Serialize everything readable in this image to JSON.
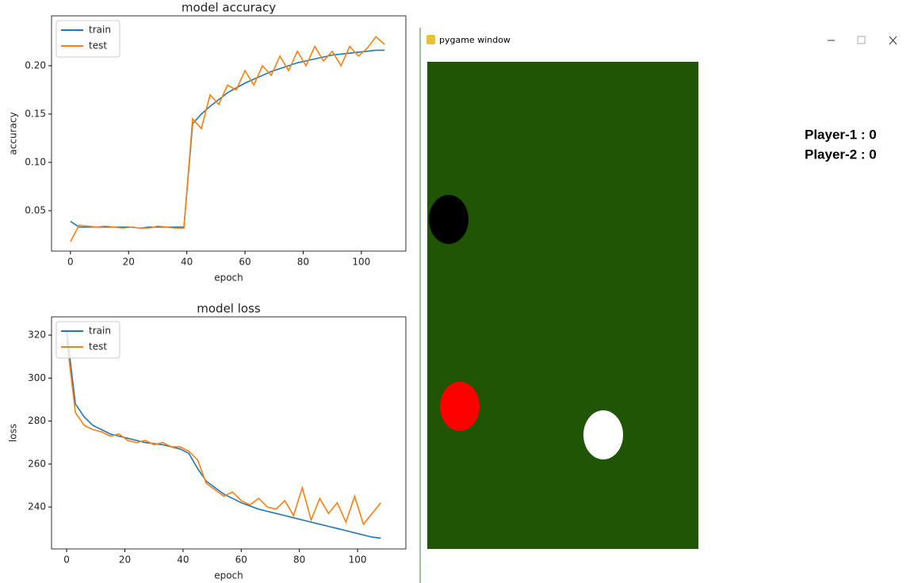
{
  "chart_data": [
    {
      "type": "line",
      "title": "model accuracy",
      "xlabel": "epoch",
      "ylabel": "accuracy",
      "x": [
        0,
        3,
        6,
        9,
        12,
        15,
        18,
        21,
        24,
        27,
        30,
        33,
        36,
        39,
        42,
        45,
        48,
        51,
        54,
        57,
        60,
        63,
        66,
        69,
        72,
        75,
        78,
        81,
        84,
        87,
        90,
        93,
        96,
        99,
        102,
        105,
        108
      ],
      "series": [
        {
          "name": "train",
          "color": "#1f77b4",
          "values": [
            0.039,
            0.033,
            0.033,
            0.033,
            0.033,
            0.033,
            0.033,
            0.033,
            0.032,
            0.033,
            0.033,
            0.033,
            0.033,
            0.033,
            0.14,
            0.15,
            0.158,
            0.165,
            0.172,
            0.177,
            0.182,
            0.186,
            0.19,
            0.194,
            0.197,
            0.2,
            0.203,
            0.205,
            0.207,
            0.209,
            0.211,
            0.212,
            0.213,
            0.214,
            0.215,
            0.216,
            0.216
          ]
        },
        {
          "name": "test",
          "color": "#ff7f0e",
          "values": [
            0.018,
            0.035,
            0.034,
            0.033,
            0.034,
            0.033,
            0.032,
            0.033,
            0.032,
            0.032,
            0.034,
            0.033,
            0.032,
            0.032,
            0.145,
            0.135,
            0.17,
            0.16,
            0.18,
            0.175,
            0.195,
            0.18,
            0.2,
            0.19,
            0.21,
            0.195,
            0.215,
            0.2,
            0.22,
            0.205,
            0.215,
            0.2,
            0.22,
            0.21,
            0.218,
            0.23,
            0.222
          ]
        }
      ],
      "xlim": [
        -6.5,
        115.3
      ],
      "xticks": [
        0,
        20,
        40,
        60,
        80,
        100
      ],
      "ylim": [
        0.0082,
        0.2516
      ],
      "yticks": [
        0.05,
        {
          "value": 0.1,
          "label": "0.10"
        },
        0.15,
        {
          "value": 0.2,
          "label": "0.20"
        }
      ],
      "legend": "upper left"
    },
    {
      "type": "line",
      "title": "model loss",
      "xlabel": "epoch",
      "ylabel": "loss",
      "x": [
        0,
        3,
        6,
        9,
        12,
        15,
        18,
        21,
        24,
        27,
        30,
        33,
        36,
        39,
        42,
        45,
        48,
        51,
        54,
        57,
        60,
        63,
        66,
        69,
        72,
        75,
        78,
        81,
        84,
        87,
        90,
        93,
        96,
        99,
        102,
        105,
        108
      ],
      "series": [
        {
          "name": "train",
          "color": "#1f77b4",
          "values": [
            322,
            288,
            282,
            278,
            276,
            274,
            273,
            272,
            271,
            270,
            269.5,
            269,
            268,
            267,
            265,
            258,
            252,
            249,
            246,
            244,
            242,
            240.5,
            239,
            238,
            237,
            236,
            235,
            234,
            233,
            232,
            231,
            230,
            229,
            228,
            227,
            226,
            225.5
          ]
        },
        {
          "name": "test",
          "color": "#ff7f0e",
          "values": [
            318,
            284,
            278,
            276,
            275,
            273,
            274,
            271,
            270,
            271,
            269,
            270,
            268,
            268,
            266,
            262,
            251,
            248,
            245,
            247,
            243,
            241,
            244,
            240,
            239,
            243,
            236,
            249,
            234,
            244,
            237,
            242,
            233,
            245,
            232,
            237,
            242
          ]
        }
      ],
      "xlim": [
        -5.2,
        116.6
      ],
      "xticks": [
        0,
        20,
        40,
        60,
        80,
        100
      ],
      "ylim": [
        220.5,
        328.5
      ],
      "yticks": [
        240,
        260,
        280,
        300,
        320
      ],
      "legend": "upper left"
    }
  ],
  "window": {
    "title": "pygame window",
    "scores": [
      "Player-1 : 0",
      "Player-2 : 0"
    ]
  }
}
